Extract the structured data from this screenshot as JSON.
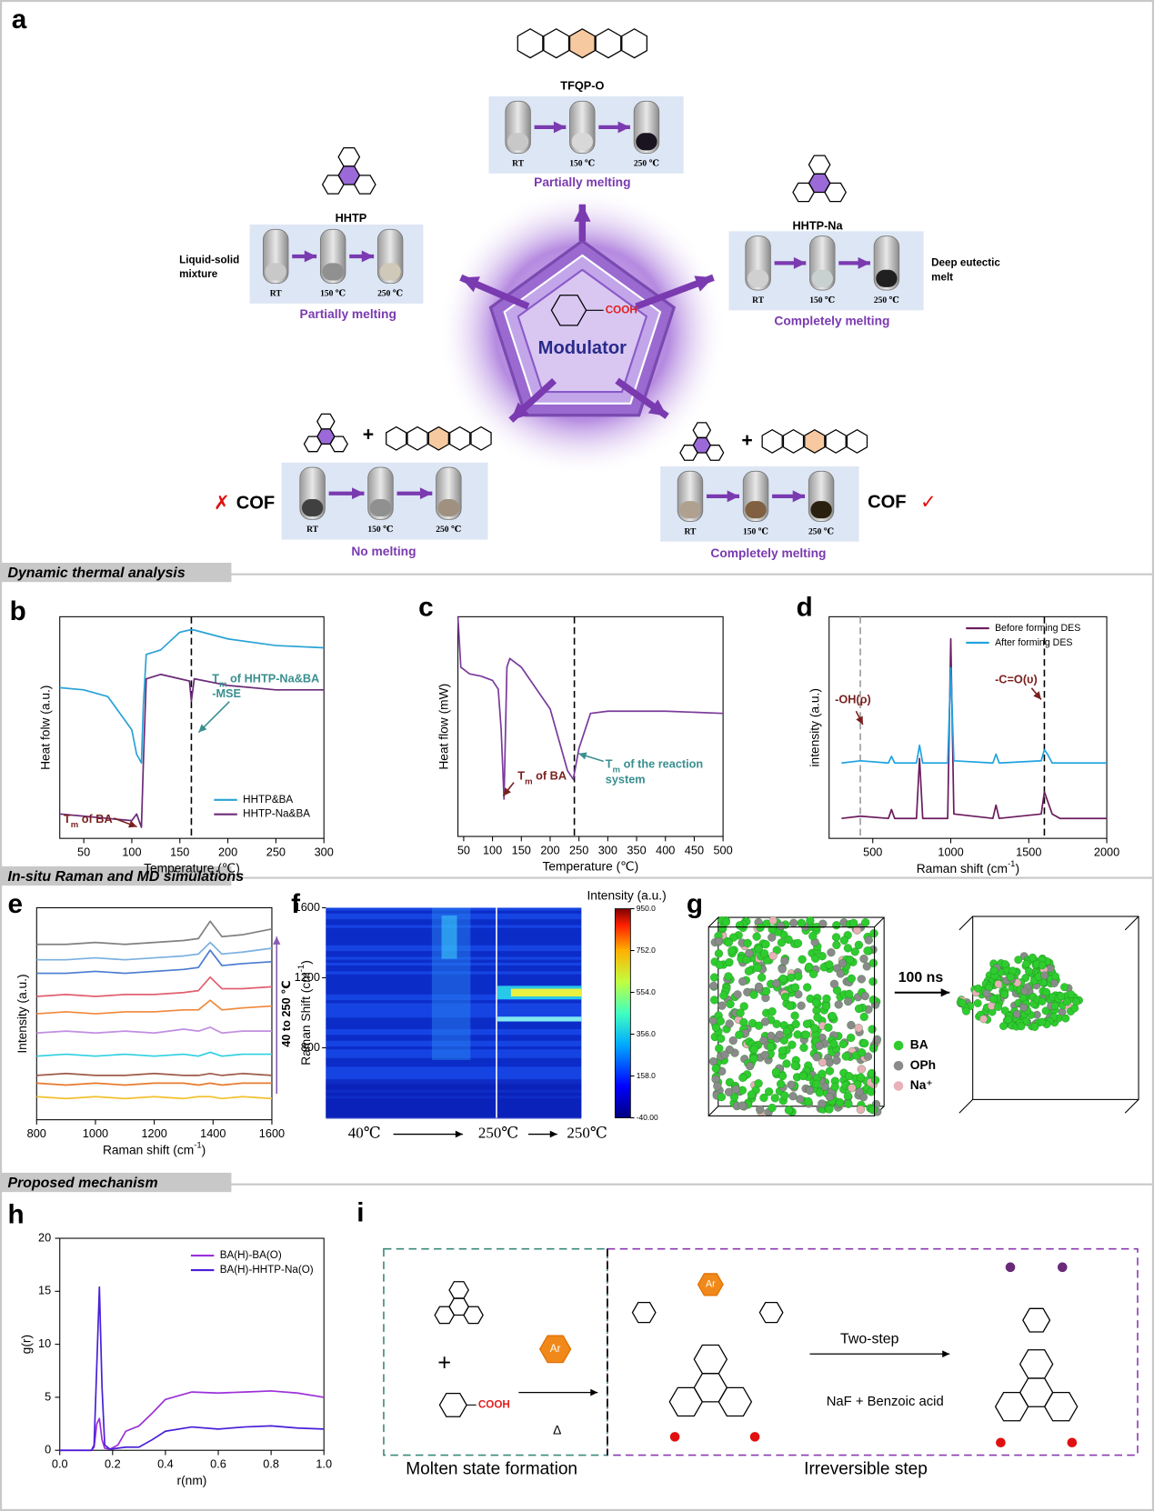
{
  "figure": {
    "panel_labels": [
      "a",
      "b",
      "c",
      "d",
      "e",
      "f",
      "g",
      "h",
      "i"
    ],
    "sections": [
      "Dynamic thermal analysis",
      "In-situ Raman and MD simulations",
      "Proposed mechanism"
    ],
    "panel_a": {
      "modulator": "Modulator",
      "group": "COOH",
      "samples": [
        {
          "name": "TFQP-O",
          "temps": [
            "RT",
            "150 ℃",
            "250 ℃"
          ],
          "status": "Partially melting"
        },
        {
          "name": "HHTP",
          "note": [
            "Liquid-solid",
            "mixture"
          ],
          "temps": [
            "RT",
            "150 ℃",
            "250 ℃"
          ],
          "status": "Partially melting"
        },
        {
          "name": "HHTP-Na",
          "note": [
            "Deep eutectic",
            "melt"
          ],
          "temps": [
            "RT",
            "150 ℃",
            "250 ℃"
          ],
          "status": "Completely melting"
        },
        {
          "plus": "+",
          "result": "COF",
          "mark": "✗",
          "temps": [
            "RT",
            "150 ℃",
            "250 ℃"
          ],
          "status": "No melting"
        },
        {
          "plus": "+",
          "result": "COF",
          "mark": "✓",
          "temps": [
            "RT",
            "150 ℃",
            "250 ℃"
          ],
          "status": "Completely melting"
        }
      ]
    },
    "panel_g": {
      "time": "100 ns",
      "legend": [
        {
          "name": "BA",
          "color": "#2ecc2e"
        },
        {
          "name": "OPh",
          "color": "#8a8a8a"
        },
        {
          "name": "Na⁺",
          "color": "#e8b0b8"
        }
      ]
    },
    "panel_i": {
      "left": "Molten state formation",
      "right": "Irreversible step",
      "heat": "Δ",
      "step": "Two-step",
      "byproduct": "NaF + Benzoic acid",
      "ar": [
        "Ar",
        "Ar"
      ],
      "group": "COOH",
      "plus": "+"
    }
  },
  "chart_data": [
    {
      "type": "line",
      "x": [
        25,
        50,
        75,
        100,
        105,
        110,
        112,
        115,
        130,
        150,
        160,
        162,
        165,
        200,
        250,
        300
      ],
      "series": [
        {
          "name": "HHTP&BA",
          "color": "#29a3d6",
          "values": [
            6.8,
            6.7,
            6.4,
            4.9,
            3.8,
            3.4,
            6.0,
            8.3,
            8.5,
            9.3,
            9.4,
            9.4,
            9.4,
            9.0,
            8.7,
            8.6
          ]
        },
        {
          "name": "HHTP-Na&BA",
          "color": "#6b2a78",
          "values": [
            1.1,
            1.0,
            0.9,
            0.8,
            1.1,
            0.5,
            3.4,
            7.2,
            7.4,
            7.2,
            7.1,
            6.2,
            7.2,
            6.9,
            6.7,
            6.7
          ]
        }
      ],
      "xlim": [
        25,
        300
      ],
      "ylim": [
        0,
        10
      ],
      "xticks": [
        50,
        100,
        150,
        200,
        250,
        300
      ],
      "xlabel": "Temperature (℃)",
      "ylabel": "Heat folw (a.u.)",
      "vlines": [
        {
          "value": 162,
          "color": "#000000"
        }
      ],
      "legend": "lower right",
      "annotations": [
        {
          "base": "T",
          "sub": "m",
          "text": " of BA",
          "color": "#7a1f1f"
        },
        {
          "base": "T",
          "sub": "m",
          "text": " of HHTP-Na&BA",
          "color": "#3a8f8f"
        },
        {
          "text": "-MSE",
          "color": "#3a8f8f"
        }
      ]
    },
    {
      "type": "line",
      "x": [
        40,
        45,
        60,
        80,
        100,
        110,
        115,
        120,
        125,
        130,
        150,
        200,
        230,
        240,
        250,
        270,
        300,
        400,
        500
      ],
      "series": [
        {
          "color": "#7a3a9a",
          "values": [
            10,
            7.7,
            7.4,
            7.3,
            7.1,
            6.7,
            4.9,
            1.7,
            7.7,
            8.1,
            7.7,
            5.8,
            3.0,
            2.6,
            4.0,
            5.6,
            5.7,
            5.7,
            5.6
          ]
        }
      ],
      "xlim": [
        40,
        500
      ],
      "ylim": [
        0,
        10
      ],
      "xticks": [
        50,
        100,
        150,
        200,
        250,
        300,
        350,
        400,
        450,
        500
      ],
      "xlabel": "Temperature (℃)",
      "ylabel": "Heat flow (mW)",
      "vlines": [
        {
          "value": 242,
          "color": "#000000"
        }
      ],
      "annotations": [
        {
          "base": "T",
          "sub": "m",
          "text": " of BA",
          "color": "#7a1f1f"
        },
        {
          "base": "T",
          "sub": "m",
          "text": " of the reaction",
          "color": "#3a8f8f"
        },
        {
          "text": "system",
          "color": "#3a8f8f"
        }
      ]
    },
    {
      "type": "line",
      "x": [
        300,
        420,
        600,
        620,
        640,
        780,
        800,
        820,
        980,
        1000,
        1020,
        1270,
        1290,
        1310,
        1580,
        1600,
        1620,
        1650,
        1700,
        2000
      ],
      "series": [
        {
          "name": "Before forming DES",
          "color": "#6b1a5e",
          "values": [
            0.9,
            1.0,
            0.9,
            1.3,
            0.9,
            0.9,
            3.6,
            0.9,
            0.9,
            9.0,
            1.1,
            0.9,
            1.5,
            0.9,
            1.1,
            2.1,
            1.7,
            1.1,
            0.9,
            0.9
          ]
        },
        {
          "name": "After forming DES",
          "color": "#1fa3e0",
          "values": [
            3.4,
            3.5,
            3.4,
            3.7,
            3.4,
            3.4,
            4.2,
            3.4,
            3.4,
            7.7,
            3.5,
            3.4,
            3.8,
            3.4,
            3.5,
            4.0,
            3.8,
            3.4,
            3.4,
            3.4
          ]
        }
      ],
      "xlim": [
        220,
        2000
      ],
      "ylim": [
        0,
        10
      ],
      "xticks": [
        500,
        1000,
        1500,
        2000
      ],
      "xlabel": {
        "text": "Raman shift (cm",
        "sup": "-1",
        "end": ")"
      },
      "ylabel": "intensity (a.u.)",
      "vlines": [
        {
          "value": 420,
          "color": "#999999"
        },
        {
          "value": 1600,
          "color": "#000000"
        }
      ],
      "legend": "upper right",
      "annotations": [
        {
          "text": "-OH(ρ)",
          "color": "#7a1f1f"
        },
        {
          "text": "-C=O(υ)",
          "color": "#7a1f1f"
        }
      ]
    },
    {
      "type": "line",
      "x": [
        800,
        900,
        1000,
        1100,
        1200,
        1300,
        1350,
        1390,
        1430,
        1500,
        1600
      ],
      "series": [
        {
          "color": "#f2c12e",
          "values": [
            1.2,
            1.1,
            1.2,
            1.1,
            1.2,
            1.1,
            1.2,
            1.2,
            1.1,
            1.2,
            1.1
          ]
        },
        {
          "color": "#e87a2e",
          "values": [
            1.9,
            1.8,
            1.9,
            1.8,
            1.9,
            1.9,
            1.8,
            1.9,
            1.8,
            1.9,
            1.9
          ]
        },
        {
          "color": "#9e5a4a",
          "values": [
            2.3,
            2.4,
            2.3,
            2.3,
            2.4,
            2.3,
            2.3,
            2.4,
            2.3,
            2.4,
            2.3
          ]
        },
        {
          "color": "#2ed0e0",
          "values": [
            3.3,
            3.4,
            3.3,
            3.4,
            3.3,
            3.4,
            3.3,
            3.5,
            3.3,
            3.4,
            3.4
          ]
        },
        {
          "color": "#c08ee0",
          "values": [
            4.5,
            4.6,
            4.5,
            4.6,
            4.5,
            4.7,
            4.6,
            4.8,
            4.5,
            4.6,
            4.6
          ]
        },
        {
          "color": "#f0883a",
          "values": [
            5.5,
            5.6,
            5.5,
            5.6,
            5.6,
            5.7,
            5.7,
            6.2,
            5.7,
            5.8,
            5.9
          ]
        },
        {
          "color": "#e06070",
          "values": [
            6.4,
            6.5,
            6.4,
            6.5,
            6.5,
            6.6,
            6.7,
            7.4,
            6.8,
            6.8,
            6.9
          ]
        },
        {
          "color": "#4a7ad0",
          "values": [
            7.6,
            7.6,
            7.7,
            7.6,
            7.7,
            7.8,
            7.9,
            8.8,
            8.0,
            8.1,
            8.2
          ]
        },
        {
          "color": "#7ab0e0",
          "values": [
            8.3,
            8.3,
            8.4,
            8.3,
            8.4,
            8.5,
            8.6,
            9.2,
            8.6,
            8.7,
            8.9
          ]
        },
        {
          "color": "#808080",
          "values": [
            9.1,
            9.1,
            9.2,
            9.1,
            9.2,
            9.3,
            9.4,
            10.3,
            9.5,
            9.6,
            9.9
          ]
        }
      ],
      "xlim": [
        800,
        1600
      ],
      "ylim": [
        0,
        11
      ],
      "xticks": [
        800,
        1000,
        1200,
        1400,
        1600
      ],
      "xlabel": {
        "text": "Raman shift (cm",
        "sup": "-1",
        "end": ")"
      },
      "ylabel": "Intensity (a.u.)",
      "annotations": [
        {
          "text": "40 to 250 ℃",
          "color": "#000000"
        }
      ]
    },
    {
      "type": "heatmap",
      "ylim": [
        400,
        1600
      ],
      "yticks": [
        800,
        1200,
        1600
      ],
      "ylabel": {
        "text": "Raman Shift (cm",
        "sup": "-1",
        "end": ")"
      },
      "xlabels": [
        "40℃",
        "250℃",
        "250℃"
      ],
      "colorbar": {
        "title": "Intensity (a.u.)",
        "lim": [
          -40,
          950
        ],
        "ticks": [
          {
            "value": 950,
            "label": "950.0"
          },
          {
            "value": 752,
            "label": "752.0"
          },
          {
            "value": 554,
            "label": "554.0"
          },
          {
            "value": 356,
            "label": "356.0"
          },
          {
            "value": 158,
            "label": "158.0"
          },
          {
            "value": -40,
            "label": "-40.00"
          }
        ]
      }
    },
    {
      "type": "line",
      "x": [
        0,
        0.12,
        0.13,
        0.14,
        0.15,
        0.16,
        0.17,
        0.19,
        0.22,
        0.25,
        0.3,
        0.35,
        0.4,
        0.5,
        0.6,
        0.7,
        0.8,
        0.9,
        1.0
      ],
      "series": [
        {
          "name": "BA(H)-BA(O)",
          "color": "#9b30d9",
          "values": [
            0,
            0,
            0.3,
            2.5,
            3.0,
            1.0,
            0.2,
            0.1,
            0.5,
            1.8,
            2.3,
            3.5,
            4.8,
            5.5,
            5.4,
            5.5,
            5.6,
            5.4,
            5.0
          ]
        },
        {
          "name": "BA(H)-HHTP-Na(O)",
          "color": "#4a1fd8",
          "values": [
            0,
            0,
            0.5,
            8,
            15.4,
            6,
            0.5,
            0.1,
            0.2,
            0.3,
            0.3,
            1.0,
            1.8,
            2.2,
            2.0,
            2.2,
            2.3,
            2.1,
            2.0
          ]
        }
      ],
      "xlim": [
        0,
        1
      ],
      "ylim": [
        0,
        20
      ],
      "xticks": [
        {
          "value": 0,
          "label": "0.0"
        },
        0.2,
        0.4,
        0.6,
        0.8,
        {
          "value": 1,
          "label": "1.0"
        }
      ],
      "yticks": [
        0,
        5,
        10,
        15,
        20
      ],
      "xlabel": "r(nm)",
      "ylabel": "g(r)",
      "legend": "upper right"
    }
  ]
}
